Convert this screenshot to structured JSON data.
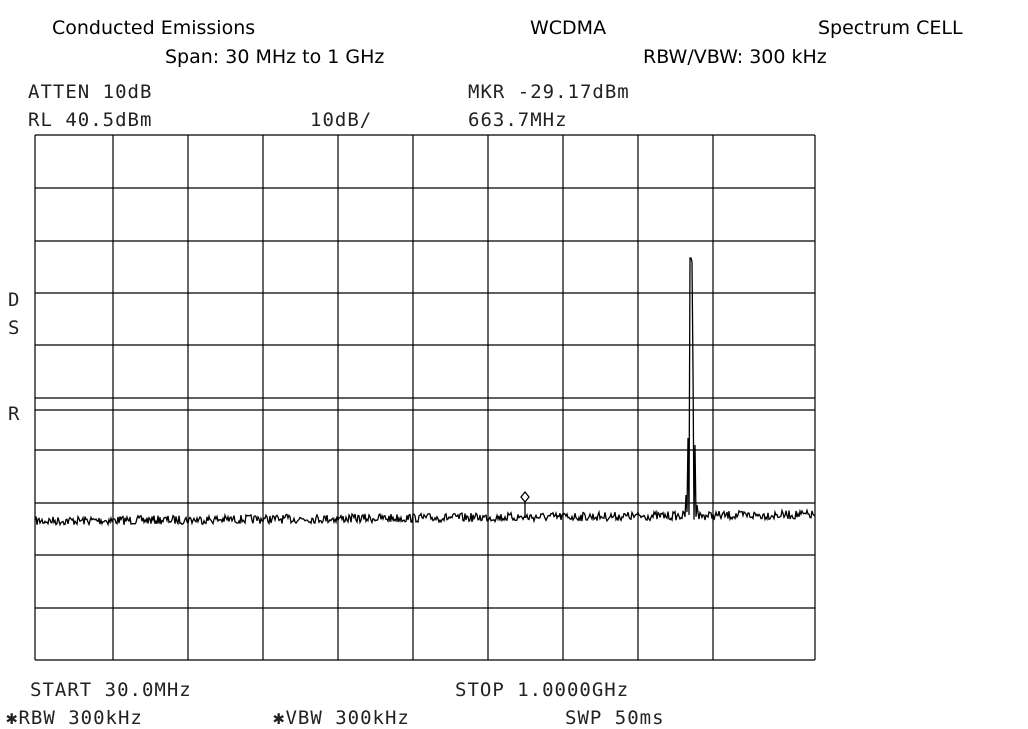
{
  "header": {
    "title": "Conducted Emissions",
    "technology": "WCDMA",
    "band": "Spectrum CELL",
    "span": "Span: 30 MHz to 1 GHz",
    "bandwidth": "RBW/VBW: 300 kHz"
  },
  "instrument": {
    "atten": "ATTEN 10dB",
    "ref_level": "RL 40.5dBm",
    "scale": "10dB/",
    "marker_level": "MKR -29.17dBm",
    "marker_freq": "663.7MHz",
    "side_labels": [
      "D",
      "S",
      "R"
    ],
    "start": "START 30.0MHz",
    "stop": "STOP 1.0000GHz",
    "rbw": "✱RBW 300kHz",
    "vbw": "✱VBW 300kHz",
    "sweep": "SWP 50ms"
  }
}
